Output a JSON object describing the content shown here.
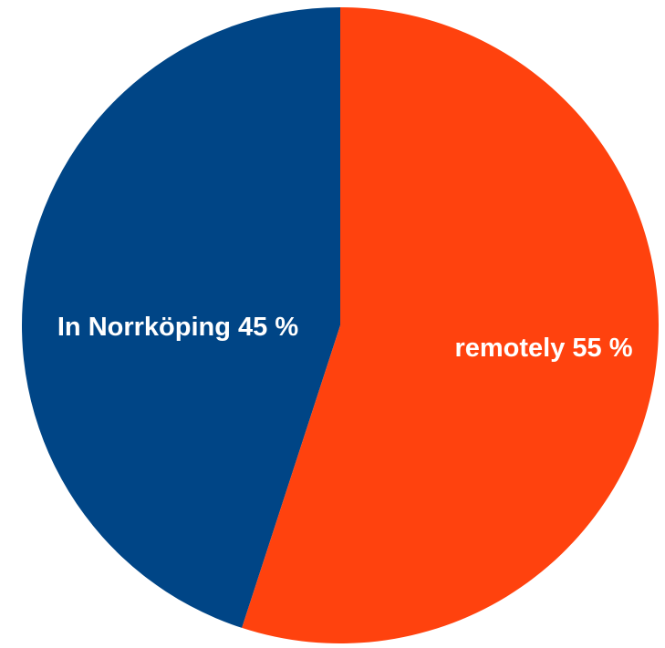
{
  "chart_data": {
    "type": "pie",
    "slices": [
      {
        "label": "In Norrköping 45 %",
        "value": 45,
        "color": "#004586"
      },
      {
        "label": "remotely 55 %",
        "value": 55,
        "color": "#ff420e"
      }
    ],
    "title": "",
    "legend": "none"
  }
}
